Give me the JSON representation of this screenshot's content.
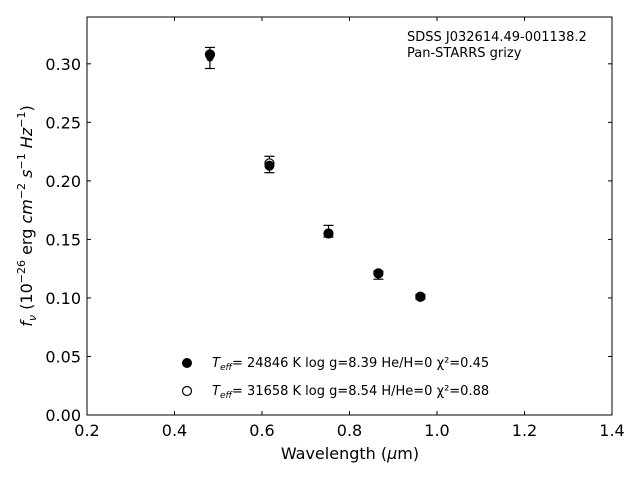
{
  "chart_data": {
    "type": "scatter",
    "annotation": [
      "SDSS J032614.49-001138.2",
      "Pan-STARRS grizy"
    ],
    "xlabel": "Wavelength (μm)",
    "ylabel": "f_ν (10^-26 erg cm^-2 s^-1 Hz^-1)",
    "xlim": [
      0.2,
      1.4
    ],
    "ylim": [
      0.0,
      0.34
    ],
    "xticks": [
      "0.2",
      "0.4",
      "0.6",
      "0.8",
      "1.0",
      "1.2",
      "1.4"
    ],
    "yticks": [
      "0.00",
      "0.05",
      "0.10",
      "0.15",
      "0.20",
      "0.25",
      "0.30"
    ],
    "observed": {
      "x": [
        0.481,
        0.617,
        0.752,
        0.866,
        0.962
      ],
      "y": [
        0.305,
        0.214,
        0.155,
        0.12,
        0.101
      ],
      "yerr_low": [
        0.009,
        0.007,
        0.003,
        0.004,
        0.002
      ],
      "yerr_high": [
        0.009,
        0.007,
        0.007,
        0.003,
        0.002
      ]
    },
    "series": [
      {
        "marker": "filled-circle",
        "legend": {
          "teff_label": "T",
          "teff_sub": "eff",
          "text": "= 24846 K  log g=8.39  He/H=0  χ²=0.45"
        },
        "x": [
          0.481,
          0.617,
          0.752,
          0.866,
          0.962
        ],
        "y": [
          0.308,
          0.213,
          0.155,
          0.121,
          0.101
        ]
      },
      {
        "marker": "open-circle",
        "legend": {
          "teff_label": "T",
          "teff_sub": "eff",
          "text": "= 31658 K  log g=8.54  H/He=0  χ²=0.88"
        },
        "x": [
          0.481,
          0.617,
          0.752,
          0.866,
          0.962
        ],
        "y": [
          0.308,
          0.215,
          0.155,
          0.121,
          0.101
        ]
      }
    ],
    "grid": false,
    "legend_position": "lower-center"
  }
}
